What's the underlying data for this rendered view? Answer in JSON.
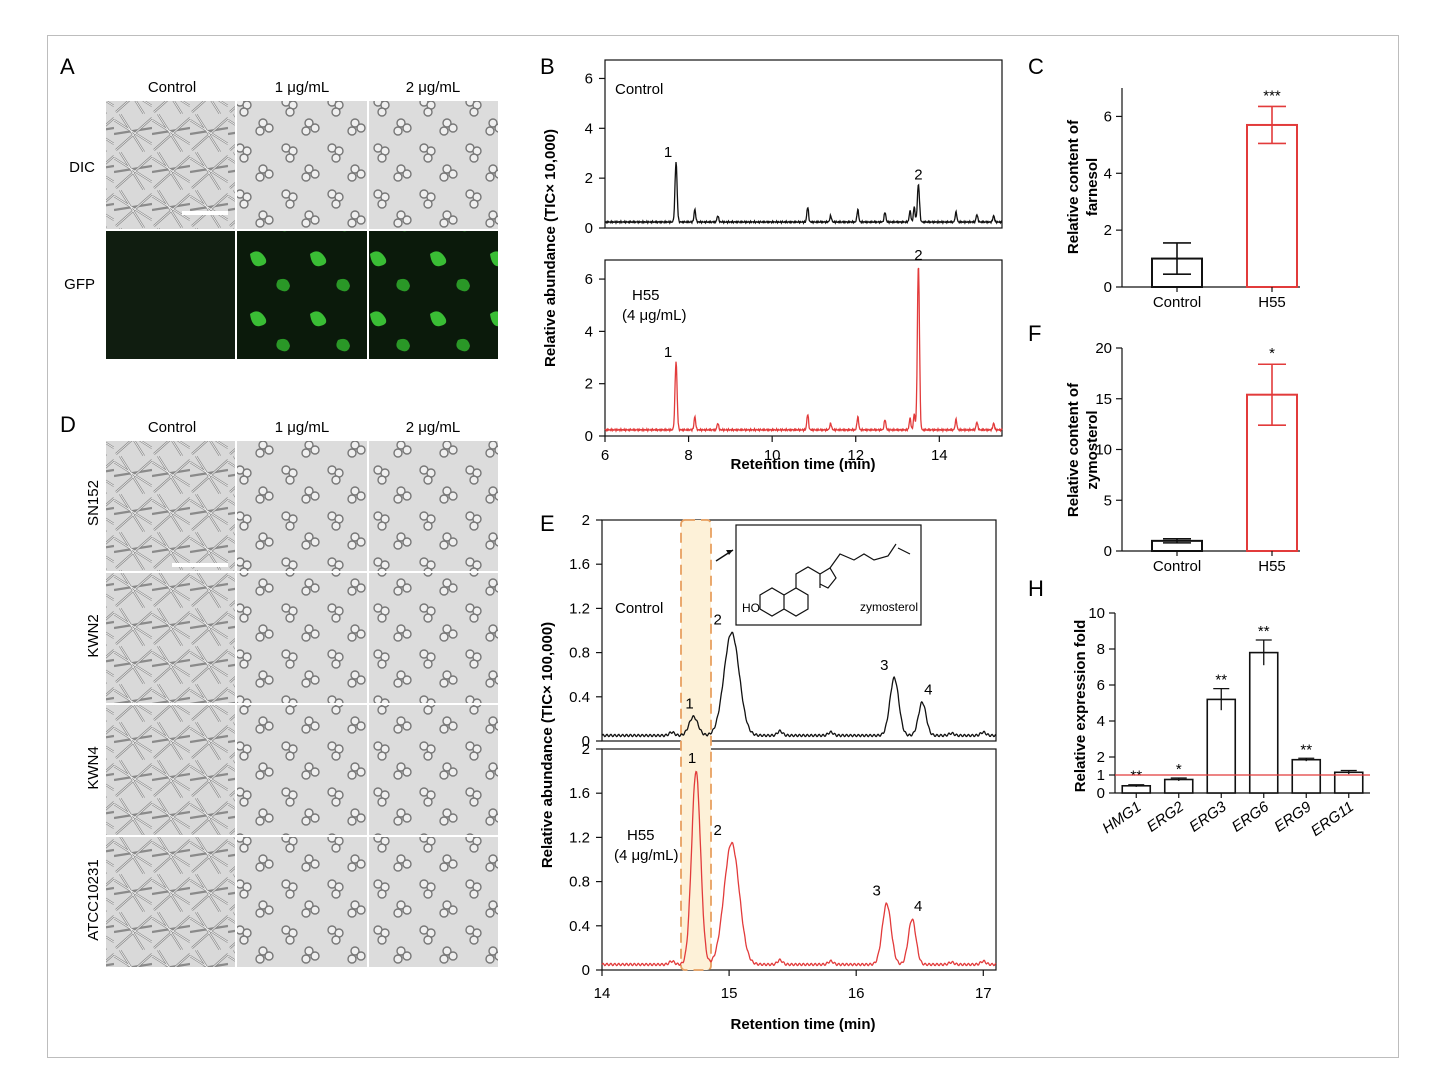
{
  "panelA": {
    "label": "A",
    "cols": [
      "Control",
      "1 μg/mL",
      "2 μg/mL"
    ],
    "rows": [
      "DIC",
      "GFP"
    ],
    "colors": {
      "dic_bg": "#d7d7d7",
      "gfp_bg": "#0b1a0b",
      "gfp_cell": "#3fcf3a"
    }
  },
  "panelD": {
    "label": "D",
    "cols": [
      "Control",
      "1 μg/mL",
      "2 μg/mL"
    ],
    "rows": [
      "SN152",
      "KWN2",
      "KWN4",
      "ATCC10231"
    ]
  },
  "panelB": {
    "label": "B",
    "control_label": "Control",
    "h55_label": "H55",
    "h55_conc": "(4 μg/mL)",
    "ylabel": "Relative abundance (TIC× 10,000)",
    "xlabel": "Retention time (min)",
    "xticks": [
      "6",
      "8",
      "10",
      "12",
      "14"
    ],
    "yticks": [
      "0",
      "2",
      "4",
      "6"
    ],
    "peak_labels": [
      "1",
      "2"
    ],
    "chart_data": {
      "type": "line",
      "x_range": [
        6,
        15.5
      ],
      "y_range": [
        0,
        6.5
      ],
      "series": [
        {
          "name": "Control",
          "color": "#111111",
          "peaks": [
            [
              7.7,
              2.4
            ],
            [
              13.5,
              1.5
            ]
          ]
        },
        {
          "name": "H55 (4 μg/mL)",
          "color": "#e23b3b",
          "peaks": [
            [
              7.7,
              2.6
            ],
            [
              13.5,
              6.3
            ]
          ]
        }
      ]
    }
  },
  "panelC": {
    "label": "C",
    "ylabel_line1": "Relative content of",
    "ylabel_line2": "farnesol",
    "yticks": [
      "0",
      "2",
      "4",
      "6"
    ],
    "sig": "***",
    "chart_data": {
      "type": "bar",
      "categories": [
        "Control",
        "H55"
      ],
      "values": [
        1.0,
        5.7
      ],
      "errors": [
        0.55,
        0.65
      ],
      "ylim": [
        0,
        7
      ]
    }
  },
  "panelF": {
    "label": "F",
    "ylabel_line1": "Relative content of",
    "ylabel_line2": "zymosterol",
    "yticks": [
      "0",
      "5",
      "10",
      "15",
      "20"
    ],
    "sig": "*",
    "chart_data": {
      "type": "bar",
      "categories": [
        "Control",
        "H55"
      ],
      "values": [
        1.0,
        15.4
      ],
      "errors": [
        0.2,
        3.0
      ],
      "ylim": [
        0,
        20
      ]
    }
  },
  "panelE": {
    "label": "E",
    "control_label": "Control",
    "h55_label": "H55",
    "h55_conc": "(4 μg/mL)",
    "ylabel": "Relative abundance (TIC× 100,000)",
    "xlabel": "Retention time (min)",
    "xticks": [
      "14",
      "15",
      "16",
      "17"
    ],
    "yticks": [
      "0",
      "0.4",
      "0.8",
      "1.2",
      "1.6",
      "2"
    ],
    "peak_labels": [
      "1",
      "2",
      "3",
      "4"
    ],
    "structure_label": "zymosterol",
    "chart_data": {
      "type": "line",
      "x_range": [
        14,
        17.1
      ],
      "y_range": [
        0,
        2
      ],
      "series": [
        {
          "name": "Control",
          "color": "#111111",
          "peaks": [
            [
              14.72,
              0.22
            ],
            [
              15.02,
              0.98
            ],
            [
              16.3,
              0.57
            ],
            [
              16.52,
              0.35
            ]
          ]
        },
        {
          "name": "H55 (4 μg/mL)",
          "color": "#e23b3b",
          "peaks": [
            [
              14.74,
              1.8
            ],
            [
              15.02,
              1.15
            ],
            [
              16.24,
              0.6
            ],
            [
              16.44,
              0.46
            ]
          ]
        }
      ]
    }
  },
  "panelH": {
    "label": "H",
    "ylabel": "Relative expression fold",
    "yticks": [
      "0",
      "1",
      "2",
      "4",
      "6",
      "8",
      "10"
    ],
    "reference_line": 1,
    "chart_data": {
      "type": "bar",
      "categories": [
        "HMG1",
        "ERG2",
        "ERG3",
        "ERG6",
        "ERG9",
        "ERG11"
      ],
      "values": [
        0.4,
        0.75,
        5.2,
        7.8,
        1.85,
        1.15
      ],
      "errors": [
        0.06,
        0.08,
        0.6,
        0.7,
        0.08,
        0.1
      ],
      "significance": [
        "**",
        "*",
        "**",
        "**",
        "**",
        ""
      ],
      "ylim": [
        0,
        10
      ]
    }
  }
}
